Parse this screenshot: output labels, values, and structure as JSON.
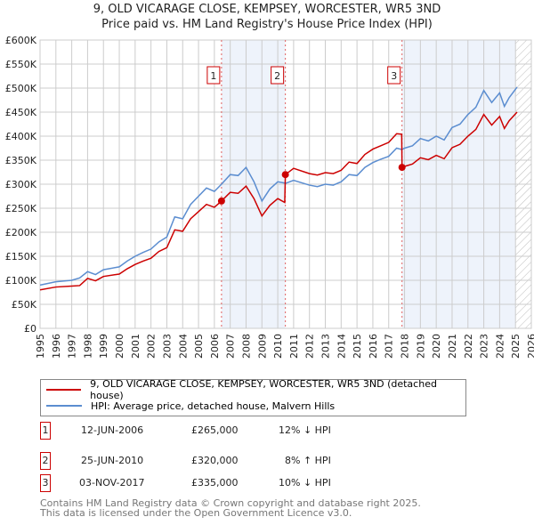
{
  "title_line1": "9, OLD VICARAGE CLOSE, KEMPSEY, WORCESTER, WR5 3ND",
  "title_line2": "Price paid vs. HM Land Registry's House Price Index (HPI)",
  "chart_data": {
    "type": "line",
    "xlim": [
      1995,
      2026
    ],
    "ylim": [
      0,
      600000
    ],
    "yticks": [
      0,
      50000,
      100000,
      150000,
      200000,
      250000,
      300000,
      350000,
      400000,
      450000,
      500000,
      550000,
      600000
    ],
    "ytick_labels": [
      "£0",
      "£50K",
      "£100K",
      "£150K",
      "£200K",
      "£250K",
      "£300K",
      "£350K",
      "£400K",
      "£450K",
      "£500K",
      "£550K",
      "£600K"
    ],
    "xticks": [
      1995,
      1996,
      1997,
      1998,
      1999,
      2000,
      2001,
      2002,
      2003,
      2004,
      2005,
      2006,
      2007,
      2008,
      2009,
      2010,
      2011,
      2012,
      2013,
      2014,
      2015,
      2016,
      2017,
      2018,
      2019,
      2020,
      2021,
      2022,
      2023,
      2024,
      2025,
      2026
    ],
    "grid": true,
    "shaded_periods": [
      [
        2006.45,
        2010.48
      ],
      [
        2017.84,
        2025.0
      ]
    ],
    "forecast_hatch": [
      2025.0,
      2026
    ],
    "series": [
      {
        "name": "9, OLD VICARAGE CLOSE, KEMPSEY, WORCESTER, WR5 3ND (detached house)",
        "color": "#cc0000",
        "x": [
          1995,
          1996,
          1997,
          1997.5,
          1998,
          1998.5,
          1999,
          2000,
          2000.5,
          2001,
          2001.5,
          2002,
          2002.5,
          2003,
          2003.5,
          2004,
          2004.5,
          2005,
          2005.5,
          2006,
          2006.45,
          2007,
          2007.5,
          2008,
          2008.5,
          2009,
          2009.5,
          2010,
          2010.44,
          2010.48,
          2011,
          2012,
          2012.5,
          2013,
          2013.5,
          2014,
          2014.5,
          2015,
          2015.5,
          2016,
          2016.5,
          2017,
          2017.5,
          2017.82,
          2017.84,
          2018,
          2018.5,
          2019,
          2019.5,
          2020,
          2020.5,
          2021,
          2021.5,
          2022,
          2022.5,
          2023,
          2023.5,
          2024,
          2024.3,
          2024.6,
          2025.1
        ],
        "y": [
          80000,
          86000,
          88000,
          89000,
          104000,
          99000,
          108000,
          113000,
          124000,
          133000,
          140000,
          146000,
          160000,
          168000,
          205000,
          202000,
          228000,
          243000,
          258000,
          252000,
          265000,
          283000,
          281000,
          296000,
          270000,
          234000,
          256000,
          270000,
          262000,
          320000,
          333000,
          322000,
          319000,
          324000,
          322000,
          329000,
          346000,
          343000,
          362000,
          373000,
          380000,
          387000,
          405000,
          404000,
          335000,
          337000,
          342000,
          355000,
          351000,
          360000,
          353000,
          376000,
          383000,
          400000,
          414000,
          445000,
          423000,
          441000,
          416000,
          432000,
          450000
        ]
      },
      {
        "name": "HPI: Average price, detached house, Malvern Hills",
        "color": "#5b8dd0",
        "x": [
          1995,
          1996,
          1997,
          1997.5,
          1998,
          1998.5,
          1999,
          2000,
          2000.5,
          2001,
          2001.5,
          2002,
          2002.5,
          2003,
          2003.5,
          2004,
          2004.5,
          2005,
          2005.5,
          2006,
          2006.45,
          2007,
          2007.5,
          2008,
          2008.5,
          2009,
          2009.5,
          2010,
          2010.5,
          2011,
          2012,
          2012.5,
          2013,
          2013.5,
          2014,
          2014.5,
          2015,
          2015.5,
          2016,
          2016.5,
          2017,
          2017.5,
          2017.84,
          2018,
          2018.5,
          2019,
          2019.5,
          2020,
          2020.5,
          2021,
          2021.5,
          2022,
          2022.5,
          2023,
          2023.5,
          2024,
          2024.3,
          2024.6,
          2025.1
        ],
        "y": [
          90000,
          97000,
          100000,
          105000,
          118000,
          112000,
          122000,
          128000,
          140000,
          150000,
          158000,
          165000,
          180000,
          190000,
          232000,
          228000,
          258000,
          275000,
          292000,
          285000,
          300000,
          320000,
          318000,
          335000,
          305000,
          265000,
          290000,
          305000,
          302000,
          308000,
          298000,
          295000,
          300000,
          298000,
          305000,
          320000,
          318000,
          335000,
          345000,
          352000,
          358000,
          375000,
          372000,
          375000,
          380000,
          395000,
          390000,
          400000,
          392000,
          418000,
          425000,
          445000,
          460000,
          495000,
          470000,
          490000,
          462000,
          480000,
          502000
        ]
      }
    ],
    "sales": [
      {
        "label": "1",
        "x": 2006.45,
        "y": 265000
      },
      {
        "label": "2",
        "x": 2010.48,
        "y": 320000
      },
      {
        "label": "3",
        "x": 2017.84,
        "y": 335000
      }
    ]
  },
  "legend": {
    "property": "9, OLD VICARAGE CLOSE, KEMPSEY, WORCESTER, WR5 3ND (detached house)",
    "hpi": "HPI: Average price, detached house, Malvern Hills"
  },
  "transactions": [
    {
      "num": "1",
      "date": "12-JUN-2006",
      "price": "£265,000",
      "hpi": "12% ↓ HPI"
    },
    {
      "num": "2",
      "date": "25-JUN-2010",
      "price": "£320,000",
      "hpi": "8% ↑ HPI"
    },
    {
      "num": "3",
      "date": "03-NOV-2017",
      "price": "£335,000",
      "hpi": "10% ↓ HPI"
    }
  ],
  "footer_line1": "Contains HM Land Registry data © Crown copyright and database right 2025.",
  "footer_line2": "This data is licensed under the Open Government Licence v3.0.",
  "colors": {
    "property": "#cc0000",
    "hpi": "#5b8dd0",
    "shade": "#eef3fb"
  }
}
